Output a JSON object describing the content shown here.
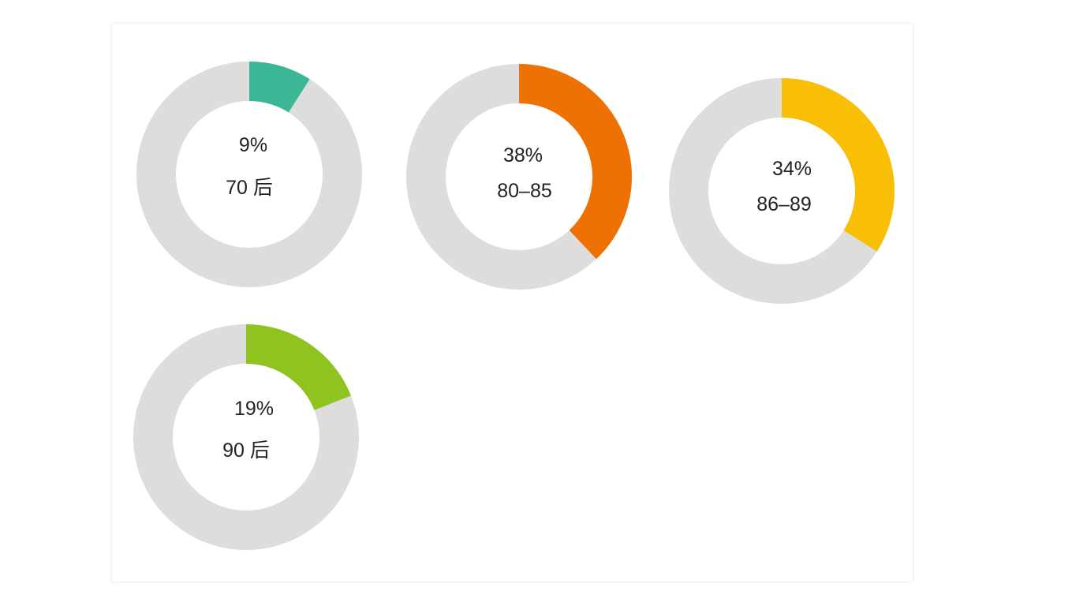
{
  "chart_data": {
    "type": "pie",
    "track_color": "#dcdddc",
    "items": [
      {
        "percent": 9,
        "percent_label": "9%",
        "label": "70 后",
        "color": "#3bb795"
      },
      {
        "percent": 38,
        "percent_label": "38%",
        "label": "80–85",
        "color": "#ee7103"
      },
      {
        "percent": 34,
        "percent_label": "34%",
        "label": "86–89",
        "color": "#f8bf04"
      },
      {
        "percent": 19,
        "percent_label": "19%",
        "label": "90 后",
        "color": "#8fc420"
      }
    ]
  }
}
